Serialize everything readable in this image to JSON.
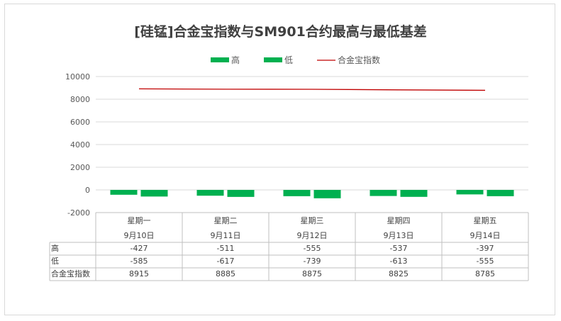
{
  "chart_data": {
    "type": "bar",
    "title": "[硅锰]合金宝指数与SM901合约最高与最低基差",
    "categories": [
      "星期一",
      "星期二",
      "星期三",
      "星期四",
      "星期五"
    ],
    "dates": [
      "9月10日",
      "9月11日",
      "9月12日",
      "9月13日",
      "9月14日"
    ],
    "series": [
      {
        "name": "高",
        "kind": "bar",
        "color": "#00b050",
        "values": [
          -427,
          -511,
          -555,
          -537,
          -397
        ]
      },
      {
        "name": "低",
        "kind": "bar",
        "color": "#00b050",
        "values": [
          -585,
          -617,
          -739,
          -613,
          -555
        ]
      },
      {
        "name": "合金宝指数",
        "kind": "line",
        "color": "#c00000",
        "values": [
          8915,
          8885,
          8875,
          8825,
          8785
        ]
      }
    ],
    "ylim": [
      -2000,
      10000
    ],
    "yticks": [
      -2000,
      0,
      2000,
      4000,
      6000,
      8000,
      10000
    ],
    "grid": true,
    "legend": "top",
    "data_table": true
  }
}
